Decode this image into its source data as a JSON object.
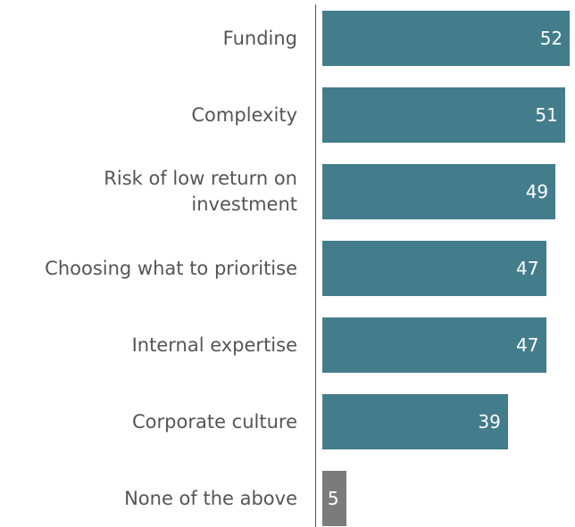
{
  "chart_data": {
    "type": "barh",
    "categories": [
      "Funding",
      "Complexity",
      "Risk of low return on investment",
      "Choosing what to prioritise",
      "Internal expertise",
      "Corporate culture",
      "None of the above"
    ],
    "values": [
      52,
      51,
      49,
      47,
      47,
      39,
      5
    ],
    "colors": [
      "#437d8c",
      "#437d8c",
      "#437d8c",
      "#437d8c",
      "#437d8c",
      "#437d8c",
      "#7b7b7b"
    ]
  }
}
